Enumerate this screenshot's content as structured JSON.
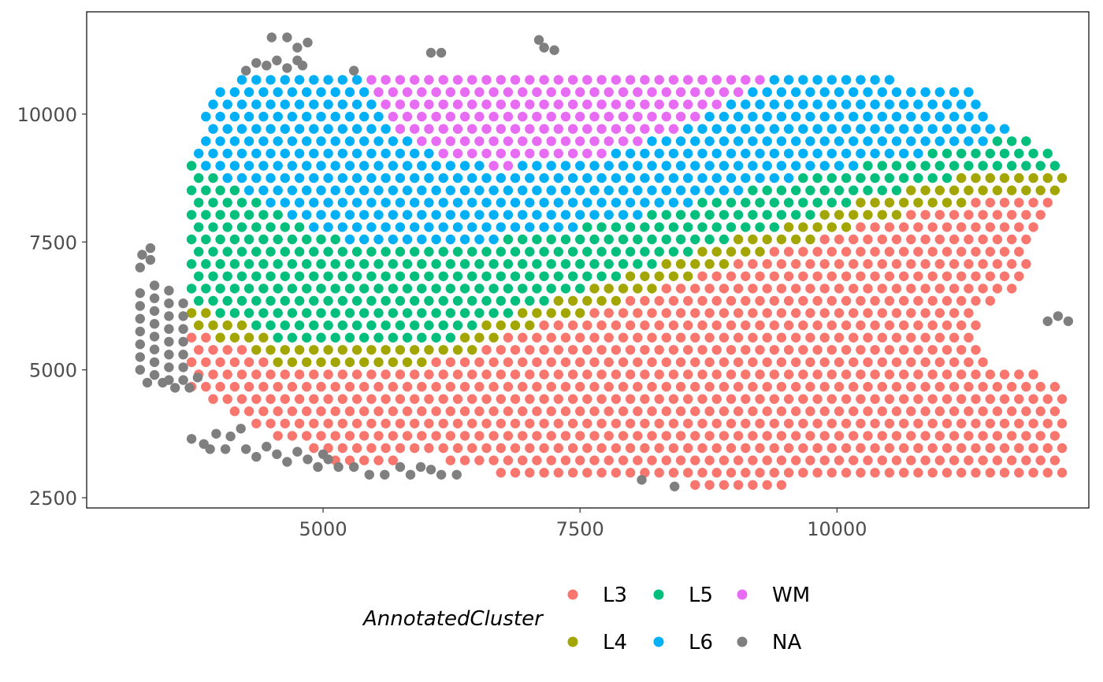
{
  "chart_data": {
    "type": "scatter",
    "title": "",
    "xlabel": "",
    "ylabel": "",
    "xlim": [
      2700,
      12450
    ],
    "ylim": [
      2300,
      12000
    ],
    "x_ticks": [
      5000,
      7500,
      10000
    ],
    "x_tick_labels": [
      "5000",
      "7500",
      "10000"
    ],
    "y_ticks": [
      2500,
      5000,
      7500,
      10000
    ],
    "y_tick_labels": [
      "2500",
      "5000",
      "7500",
      "10000"
    ],
    "grid": false,
    "legend": {
      "title": "AnnotatedCluster",
      "placement": "bottom",
      "entries": [
        {
          "key": "L3",
          "label": "L3",
          "color": "#F8766D"
        },
        {
          "key": "L4",
          "label": "L4",
          "color": "#A3A500"
        },
        {
          "key": "L5",
          "label": "L5",
          "color": "#00BF7D"
        },
        {
          "key": "L6",
          "label": "L6",
          "color": "#00B0F6"
        },
        {
          "key": "WM",
          "label": "WM",
          "color": "#E76BF3"
        },
        {
          "key": "NA",
          "label": "NA",
          "color": "#7F7F7F"
        }
      ]
    },
    "spot_grid": {
      "x_start": 3720,
      "x_end": 12200,
      "x_step": 140,
      "y_start": 2750,
      "y_end": 10900,
      "y_step": 240
    },
    "layer_boundaries": {
      "L3_L4": [
        [
          3650,
          5850
        ],
        [
          4200,
          5400
        ],
        [
          4800,
          4950
        ],
        [
          5600,
          4950
        ],
        [
          6200,
          5200
        ],
        [
          7000,
          5800
        ],
        [
          8000,
          6400
        ],
        [
          9000,
          7100
        ],
        [
          10000,
          7700
        ],
        [
          11000,
          8200
        ],
        [
          11800,
          8400
        ],
        [
          12200,
          8500
        ]
      ],
      "L4_L5": [
        [
          3650,
          6450
        ],
        [
          4200,
          5900
        ],
        [
          4800,
          5450
        ],
        [
          5600,
          5400
        ],
        [
          6200,
          5600
        ],
        [
          7000,
          6200
        ],
        [
          8000,
          6850
        ],
        [
          9000,
          7550
        ],
        [
          10000,
          8150
        ],
        [
          11000,
          8700
        ],
        [
          11800,
          8900
        ],
        [
          12200,
          9000
        ]
      ],
      "L5_L6": [
        [
          3650,
          9200
        ],
        [
          4500,
          8100
        ],
        [
          5000,
          7600
        ],
        [
          5800,
          7400
        ],
        [
          6500,
          7500
        ],
        [
          7500,
          7800
        ],
        [
          8500,
          8200
        ],
        [
          9500,
          8700
        ],
        [
          10500,
          9100
        ],
        [
          11500,
          9500
        ],
        [
          12200,
          9800
        ]
      ],
      "L6_WM": [
        [
          5300,
          10800
        ],
        [
          5700,
          9700
        ],
        [
          6200,
          9100
        ],
        [
          6700,
          8950
        ],
        [
          7300,
          9050
        ],
        [
          7900,
          9300
        ],
        [
          8500,
          9700
        ],
        [
          9000,
          10250
        ],
        [
          9500,
          11000
        ]
      ]
    },
    "edge_profile": {
      "bottom": [
        [
          3720,
          4600
        ],
        [
          4000,
          4300
        ],
        [
          4500,
          3700
        ],
        [
          5000,
          3300
        ],
        [
          5400,
          3000
        ],
        [
          5800,
          3300
        ],
        [
          6300,
          3200
        ],
        [
          6800,
          2900
        ],
        [
          7500,
          2950
        ],
        [
          8500,
          2750
        ],
        [
          9500,
          2750
        ],
        [
          11000,
          2800
        ],
        [
          12200,
          2850
        ]
      ],
      "top": [
        [
          3720,
          9200
        ],
        [
          3900,
          10200
        ],
        [
          4100,
          10700
        ],
        [
          5300,
          10900
        ],
        [
          9500,
          10900
        ],
        [
          10500,
          10700
        ],
        [
          11300,
          10500
        ],
        [
          11400,
          10000
        ],
        [
          12000,
          9400
        ],
        [
          12200,
          9000
        ]
      ],
      "right": [
        [
          2750,
          12200
        ],
        [
          4800,
          12200
        ],
        [
          5000,
          11700
        ],
        [
          5300,
          11400
        ],
        [
          6100,
          11400
        ],
        [
          6800,
          11900
        ],
        [
          7400,
          11900
        ],
        [
          8500,
          12200
        ],
        [
          9000,
          12200
        ]
      ]
    },
    "na_points": [
      [
        3220,
        7000
      ],
      [
        3240,
        7250
      ],
      [
        3320,
        7380
      ],
      [
        3320,
        7150
      ],
      [
        3220,
        6500
      ],
      [
        3220,
        6250
      ],
      [
        3220,
        6000
      ],
      [
        3220,
        5750
      ],
      [
        3220,
        5500
      ],
      [
        3220,
        5250
      ],
      [
        3220,
        5000
      ],
      [
        3360,
        6650
      ],
      [
        3360,
        6400
      ],
      [
        3360,
        6150
      ],
      [
        3360,
        5900
      ],
      [
        3360,
        5650
      ],
      [
        3360,
        5400
      ],
      [
        3360,
        5150
      ],
      [
        3360,
        4900
      ],
      [
        3500,
        6550
      ],
      [
        3500,
        6300
      ],
      [
        3500,
        6050
      ],
      [
        3500,
        5800
      ],
      [
        3500,
        5550
      ],
      [
        3500,
        5300
      ],
      [
        3500,
        5050
      ],
      [
        3500,
        4800
      ],
      [
        3640,
        6300
      ],
      [
        3640,
        6050
      ],
      [
        3640,
        5800
      ],
      [
        3640,
        5550
      ],
      [
        3640,
        5300
      ],
      [
        3640,
        5050
      ],
      [
        3640,
        4800
      ],
      [
        3780,
        4850
      ],
      [
        3700,
        4650
      ],
      [
        3560,
        4650
      ],
      [
        3440,
        4750
      ],
      [
        3290,
        4750
      ],
      [
        3720,
        3650
      ],
      [
        3840,
        3550
      ],
      [
        3960,
        3750
      ],
      [
        4100,
        3700
      ],
      [
        4200,
        3850
      ],
      [
        3900,
        3450
      ],
      [
        4050,
        3450
      ],
      [
        4250,
        3450
      ],
      [
        4350,
        3300
      ],
      [
        4450,
        3500
      ],
      [
        4550,
        3350
      ],
      [
        4650,
        3200
      ],
      [
        4750,
        3400
      ],
      [
        4850,
        3250
      ],
      [
        4950,
        3100
      ],
      [
        5050,
        3250
      ],
      [
        5150,
        3100
      ],
      [
        5300,
        3100
      ],
      [
        5450,
        2950
      ],
      [
        5600,
        2950
      ],
      [
        5000,
        3350
      ],
      [
        5750,
        3100
      ],
      [
        5850,
        2950
      ],
      [
        5950,
        3100
      ],
      [
        6050,
        3050
      ],
      [
        6150,
        2950
      ],
      [
        6300,
        2950
      ],
      [
        8100,
        2850
      ],
      [
        8420,
        2720
      ],
      [
        4250,
        10850
      ],
      [
        4350,
        11000
      ],
      [
        4450,
        10950
      ],
      [
        4550,
        11050
      ],
      [
        4650,
        10900
      ],
      [
        4750,
        11050
      ],
      [
        4500,
        11500
      ],
      [
        4650,
        11500
      ],
      [
        4750,
        11300
      ],
      [
        4850,
        11400
      ],
      [
        4800,
        10950
      ],
      [
        5300,
        10850
      ],
      [
        6050,
        11200
      ],
      [
        6150,
        11200
      ],
      [
        7100,
        11450
      ],
      [
        7150,
        11300
      ],
      [
        7250,
        11250
      ],
      [
        12050,
        5950
      ],
      [
        12150,
        6050
      ],
      [
        12250,
        5950
      ]
    ],
    "x_range_points": [
      3220,
      12250
    ],
    "y_range_points": [
      2720,
      11500
    ]
  }
}
